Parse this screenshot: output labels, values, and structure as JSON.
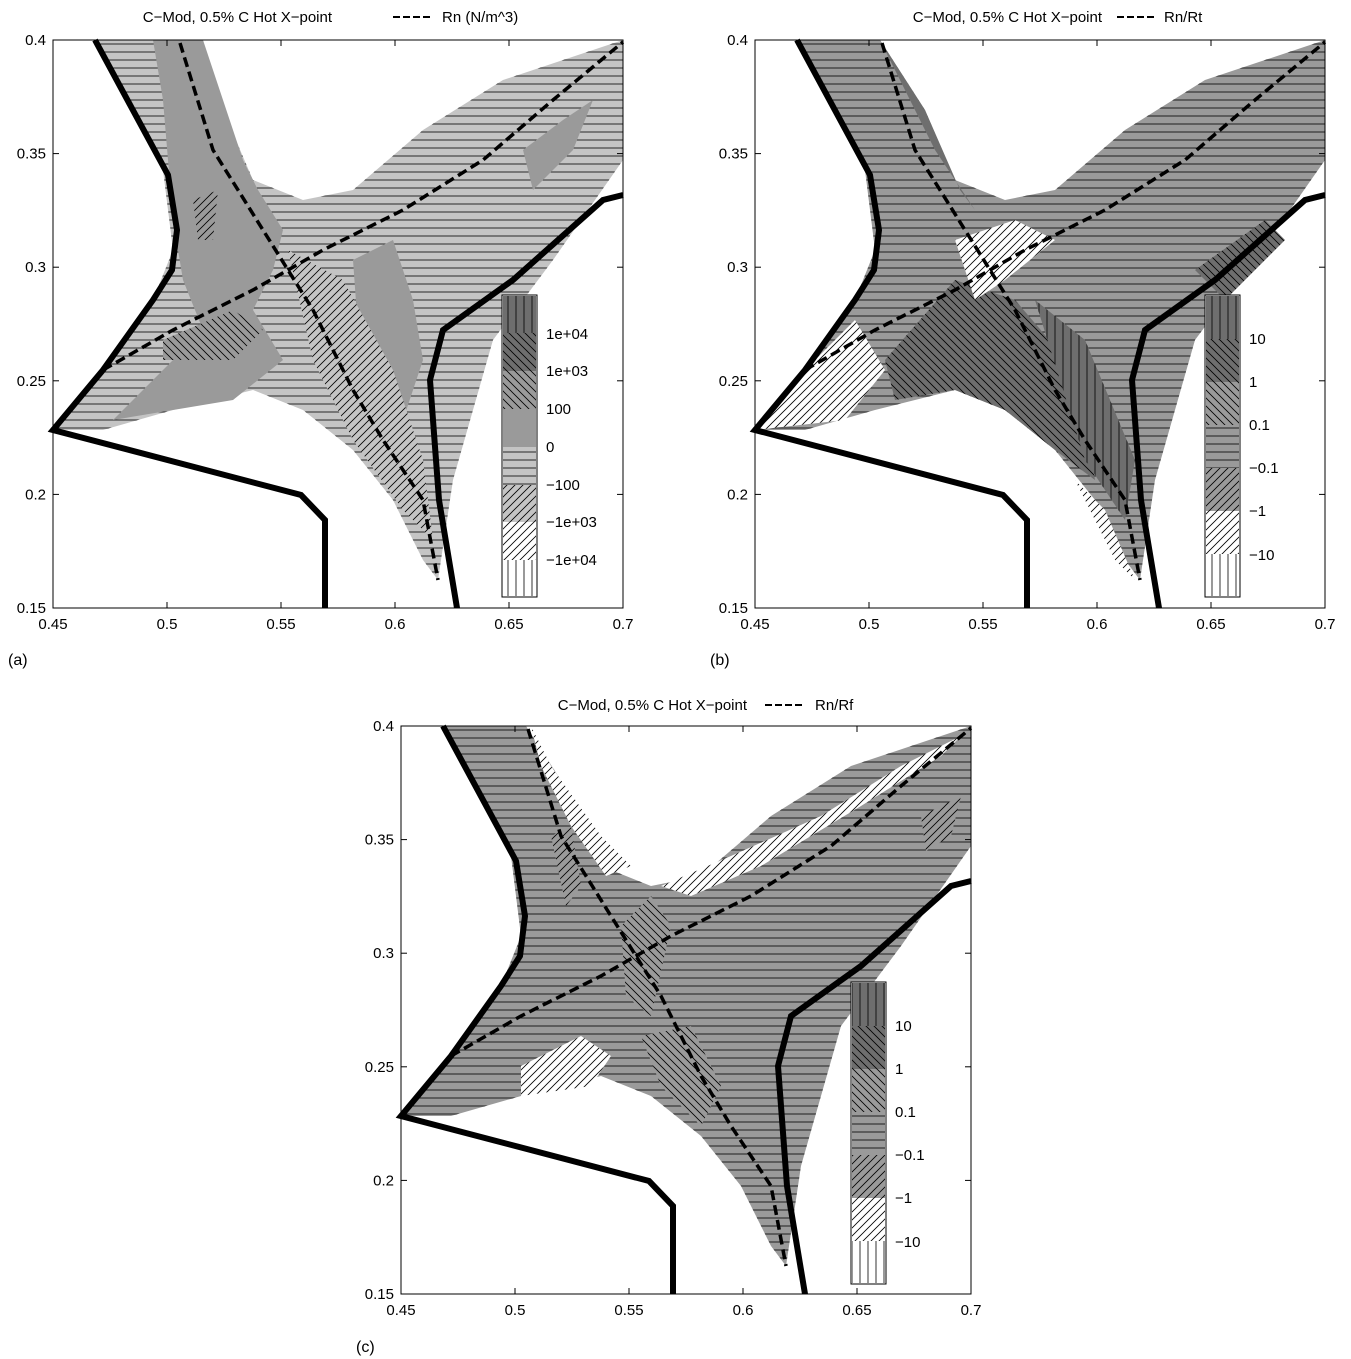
{
  "chart_data": [
    {
      "type": "contour",
      "panel_label": "(a)",
      "title": "C−Mod, 0.5% C Hot X−point",
      "legend_line_label": "Rn (N/m^3)",
      "xlim": [
        0.45,
        0.7
      ],
      "ylim": [
        0.15,
        0.4
      ],
      "x_ticks": [
        0.45,
        0.5,
        0.55,
        0.6,
        0.65,
        0.7
      ],
      "y_ticks": [
        0.15,
        0.2,
        0.25,
        0.3,
        0.35,
        0.4
      ],
      "x_tick_labels": [
        "0.45",
        "0.5",
        "0.55",
        "0.6",
        "0.65",
        "0.7"
      ],
      "y_tick_labels": [
        "0.15",
        "0.2",
        "0.25",
        "0.3",
        "0.35",
        "0.4"
      ],
      "colorbar_labels": [
        "1e+04",
        "1e+03",
        "100",
        "0",
        "−100",
        "−1e+03",
        "−1e+04"
      ]
    },
    {
      "type": "contour",
      "panel_label": "(b)",
      "title": "C−Mod, 0.5% C Hot X−point",
      "legend_line_label": "Rn/Rt",
      "xlim": [
        0.45,
        0.7
      ],
      "ylim": [
        0.15,
        0.4
      ],
      "x_ticks": [
        0.45,
        0.5,
        0.55,
        0.6,
        0.65,
        0.7
      ],
      "y_ticks": [
        0.15,
        0.2,
        0.25,
        0.3,
        0.35,
        0.4
      ],
      "x_tick_labels": [
        "0.45",
        "0.5",
        "0.55",
        "0.6",
        "0.65",
        "0.7"
      ],
      "y_tick_labels": [
        "0.15",
        "0.2",
        "0.25",
        "0.3",
        "0.35",
        "0.4"
      ],
      "colorbar_labels": [
        "10",
        "1",
        "0.1",
        "−0.1",
        "−1",
        "−10"
      ]
    },
    {
      "type": "contour",
      "panel_label": "(c)",
      "title": "C−Mod, 0.5% C Hot X−point",
      "legend_line_label": "Rn/Rf",
      "xlim": [
        0.45,
        0.7
      ],
      "ylim": [
        0.15,
        0.4
      ],
      "x_ticks": [
        0.45,
        0.5,
        0.55,
        0.6,
        0.65,
        0.7
      ],
      "y_ticks": [
        0.15,
        0.2,
        0.25,
        0.3,
        0.35,
        0.4
      ],
      "x_tick_labels": [
        "0.45",
        "0.5",
        "0.55",
        "0.6",
        "0.65",
        "0.7"
      ],
      "y_tick_labels": [
        "0.15",
        "0.2",
        "0.25",
        "0.3",
        "0.35",
        "0.4"
      ],
      "colorbar_labels": [
        "10",
        "1",
        "0.1",
        "−0.1",
        "−1",
        "−10"
      ]
    }
  ],
  "style": {
    "wall_color": "#000000",
    "separatrix_color": "#000000",
    "fill_dark": "#6e6e6e",
    "fill_mid": "#9a9a9a",
    "fill_light": "#c4c4c4",
    "fill_white": "#ffffff"
  }
}
